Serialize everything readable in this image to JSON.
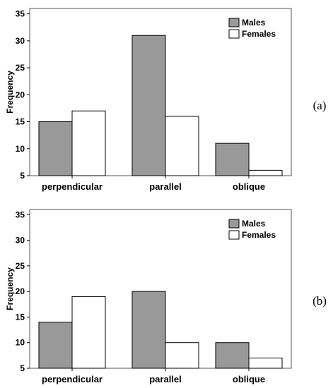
{
  "chart_data": [
    {
      "type": "bar",
      "panel_label": "(a)",
      "categories": [
        "perpendicular",
        "parallel",
        "oblique"
      ],
      "series": [
        {
          "name": "Males",
          "values": [
            15,
            31,
            11
          ],
          "color": "#999999"
        },
        {
          "name": "Females",
          "values": [
            17,
            16,
            6
          ],
          "color": "#ffffff"
        }
      ],
      "title": "",
      "xlabel": "",
      "ylabel": "Frequency",
      "ylim": [
        5,
        36
      ],
      "yticks": [
        5,
        10,
        15,
        20,
        25,
        30,
        35
      ],
      "legend": "top-right",
      "grid": false
    },
    {
      "type": "bar",
      "panel_label": "(b)",
      "categories": [
        "perpendicular",
        "parallel",
        "oblique"
      ],
      "series": [
        {
          "name": "Males",
          "values": [
            14,
            20,
            10
          ],
          "color": "#999999"
        },
        {
          "name": "Females",
          "values": [
            19,
            10,
            7
          ],
          "color": "#ffffff"
        }
      ],
      "title": "",
      "xlabel": "",
      "ylabel": "Frequency",
      "ylim": [
        5,
        36
      ],
      "yticks": [
        5,
        10,
        15,
        20,
        25,
        30,
        35
      ],
      "legend": "top-right",
      "grid": false
    }
  ]
}
